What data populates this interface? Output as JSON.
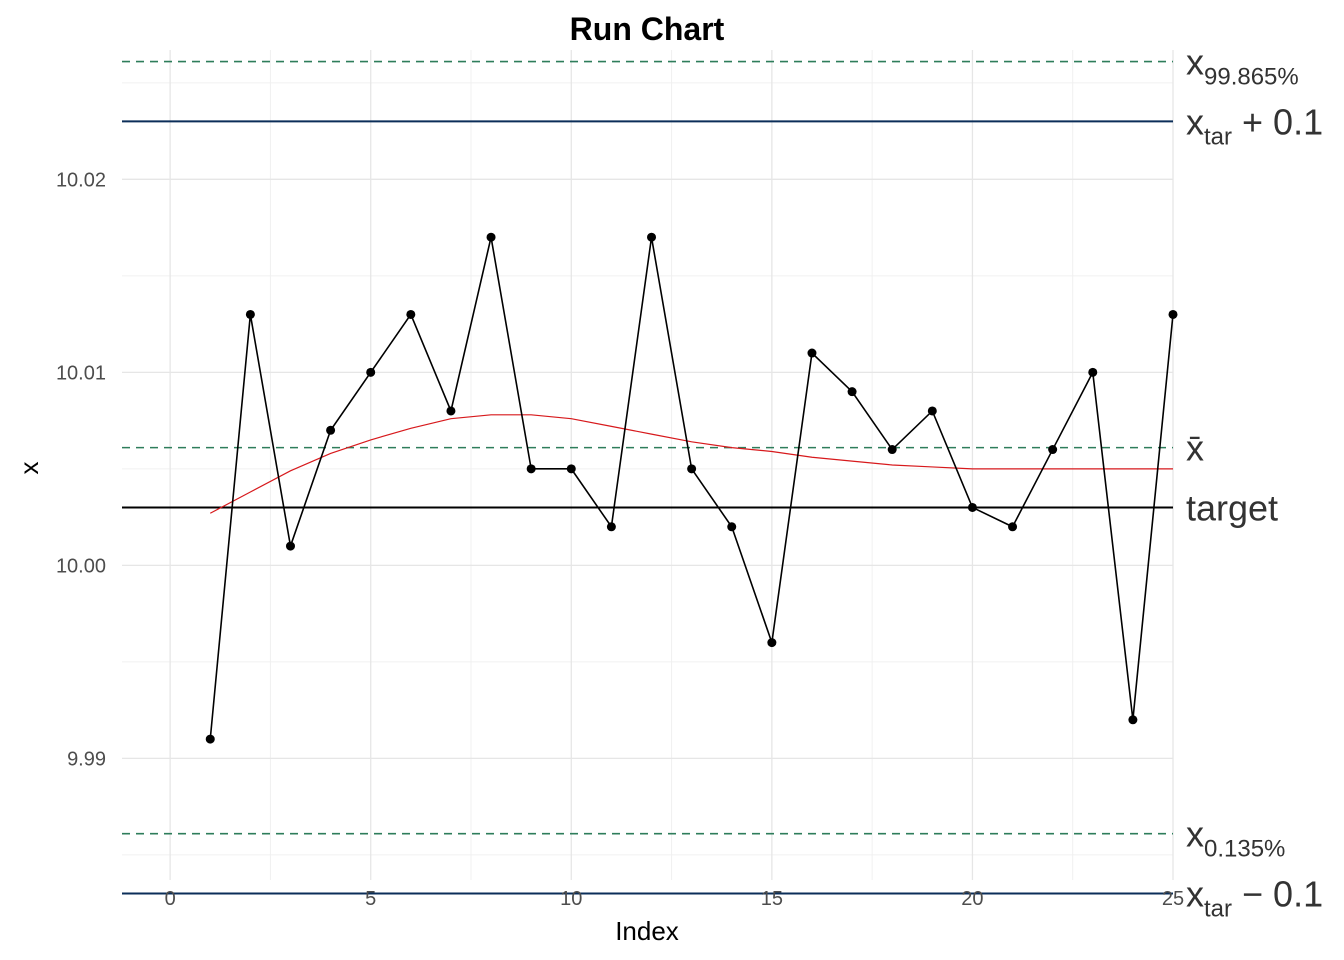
{
  "chart_data": {
    "type": "line",
    "title": "Run Chart",
    "xlabel": "Index",
    "ylabel": "x",
    "xlim": [
      -1.2,
      25
    ],
    "ylim": [
      9.9837,
      10.0267
    ],
    "x_ticks": [
      0,
      5,
      10,
      15,
      20,
      25
    ],
    "x_tick_labels": [
      "0",
      "5",
      "10",
      "15",
      "20",
      "25"
    ],
    "y_ticks": [
      9.99,
      10.0,
      10.01,
      10.02
    ],
    "y_tick_labels": [
      "9.99",
      "10.00",
      "10.01",
      "10.02"
    ],
    "grid": true,
    "series": [
      {
        "x": [
          1,
          2,
          3,
          4,
          5,
          6,
          7,
          8,
          9,
          10,
          11,
          12,
          13,
          14,
          15,
          16,
          17,
          18,
          19,
          20,
          21,
          22,
          23,
          24,
          25
        ],
        "values": [
          9.991,
          10.013,
          10.001,
          10.007,
          10.01,
          10.013,
          10.008,
          10.017,
          10.005,
          10.005,
          10.002,
          10.017,
          10.005,
          10.002,
          9.996,
          10.011,
          10.009,
          10.006,
          10.008,
          10.003,
          10.002,
          10.006,
          10.01,
          9.992,
          10.013
        ],
        "color": "#000000"
      }
    ],
    "smooth": {
      "x": [
        1,
        2,
        3,
        4,
        5,
        6,
        7,
        8,
        9,
        10,
        11,
        12,
        13,
        14,
        15,
        16,
        17,
        18,
        19,
        20,
        21,
        22,
        23,
        24,
        25
      ],
      "values": [
        10.0027,
        10.0038,
        10.0049,
        10.0058,
        10.0065,
        10.0071,
        10.0076,
        10.0078,
        10.0078,
        10.0076,
        10.0072,
        10.0068,
        10.0064,
        10.0061,
        10.0059,
        10.0056,
        10.0054,
        10.0052,
        10.0051,
        10.005,
        10.005,
        10.005,
        10.005,
        10.005,
        10.005
      ],
      "color": "#d7191c"
    },
    "reference_lines": [
      {
        "value": 10.0261,
        "style": "dashed",
        "color": "#2e7d5b",
        "label_main": "x",
        "label_sub": "99.865%",
        "label_tail": ""
      },
      {
        "value": 10.023,
        "style": "solid",
        "color": "#0b2e59",
        "label_main": "x",
        "label_sub": "tar",
        "label_tail": " + 0.1"
      },
      {
        "value": 10.0061,
        "style": "dashed",
        "color": "#2e7d5b",
        "label_main": "x̄",
        "label_sub": "",
        "label_tail": ""
      },
      {
        "value": 10.003,
        "style": "solid",
        "color": "#000000",
        "label_main": "target",
        "label_sub": "",
        "label_tail": ""
      },
      {
        "value": 9.9861,
        "style": "dashed",
        "color": "#2e7d5b",
        "label_main": "x",
        "label_sub": "0.135%",
        "label_tail": ""
      },
      {
        "value": 9.983,
        "style": "solid",
        "color": "#0b2e59",
        "label_main": "x",
        "label_sub": "tar",
        "label_tail": " − 0.1"
      }
    ]
  }
}
